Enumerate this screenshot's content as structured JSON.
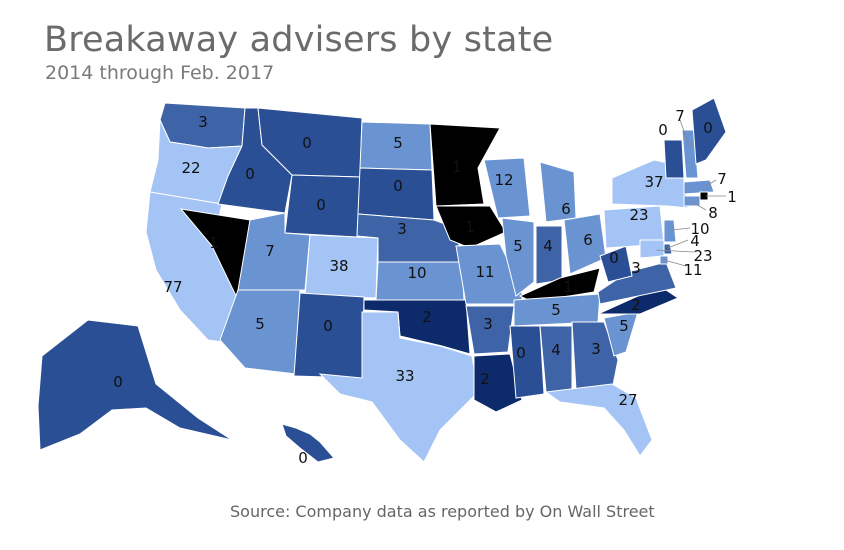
{
  "title": "Breakaway advisers by state",
  "subtitle": "2014 through Feb. 2017",
  "source": "Source: Company data as reported by On Wall Street",
  "colors": {
    "zero": "#2a4f95",
    "low": "#3e63a7",
    "mid": "#6a93d2",
    "high": "#a3c4f5",
    "two": "#0d2b6b",
    "one": "#000000"
  },
  "chart_data": {
    "type": "choropleth",
    "states": [
      {
        "state": "WA",
        "value": 3
      },
      {
        "state": "OR",
        "value": 22
      },
      {
        "state": "CA",
        "value": 77
      },
      {
        "state": "NV",
        "value": 1
      },
      {
        "state": "ID",
        "value": 0
      },
      {
        "state": "MT",
        "value": 0
      },
      {
        "state": "WY",
        "value": 0
      },
      {
        "state": "UT",
        "value": 7
      },
      {
        "state": "AZ",
        "value": 5
      },
      {
        "state": "CO",
        "value": 38
      },
      {
        "state": "NM",
        "value": 0
      },
      {
        "state": "ND",
        "value": 5
      },
      {
        "state": "SD",
        "value": 0
      },
      {
        "state": "NE",
        "value": 3
      },
      {
        "state": "KS",
        "value": 10
      },
      {
        "state": "OK",
        "value": 2
      },
      {
        "state": "TX",
        "value": 33
      },
      {
        "state": "MN",
        "value": 1
      },
      {
        "state": "IA",
        "value": 1
      },
      {
        "state": "MO",
        "value": 11
      },
      {
        "state": "AR",
        "value": 3
      },
      {
        "state": "LA",
        "value": 2
      },
      {
        "state": "WI",
        "value": 12
      },
      {
        "state": "IL",
        "value": 5
      },
      {
        "state": "MI",
        "value": 6
      },
      {
        "state": "IN",
        "value": 4
      },
      {
        "state": "OH",
        "value": 6
      },
      {
        "state": "KY",
        "value": 1
      },
      {
        "state": "TN",
        "value": 5
      },
      {
        "state": "MS",
        "value": 0
      },
      {
        "state": "AL",
        "value": 4
      },
      {
        "state": "GA",
        "value": 3
      },
      {
        "state": "FL",
        "value": 27
      },
      {
        "state": "SC",
        "value": 5
      },
      {
        "state": "NC",
        "value": 2
      },
      {
        "state": "VA",
        "value": 3
      },
      {
        "state": "WV",
        "value": 0
      },
      {
        "state": "PA",
        "value": 23
      },
      {
        "state": "NY",
        "value": 37
      },
      {
        "state": "VT",
        "value": 0
      },
      {
        "state": "NH",
        "value": 7
      },
      {
        "state": "ME",
        "value": 0
      },
      {
        "state": "MA",
        "value": 7
      },
      {
        "state": "RI",
        "value": 1
      },
      {
        "state": "CT",
        "value": 8
      },
      {
        "state": "NJ",
        "value": 10
      },
      {
        "state": "DE",
        "value": 4
      },
      {
        "state": "MD",
        "value": 23
      },
      {
        "state": "DC",
        "value": 11
      },
      {
        "state": "AK",
        "value": 0
      },
      {
        "state": "HI",
        "value": 0
      }
    ]
  }
}
